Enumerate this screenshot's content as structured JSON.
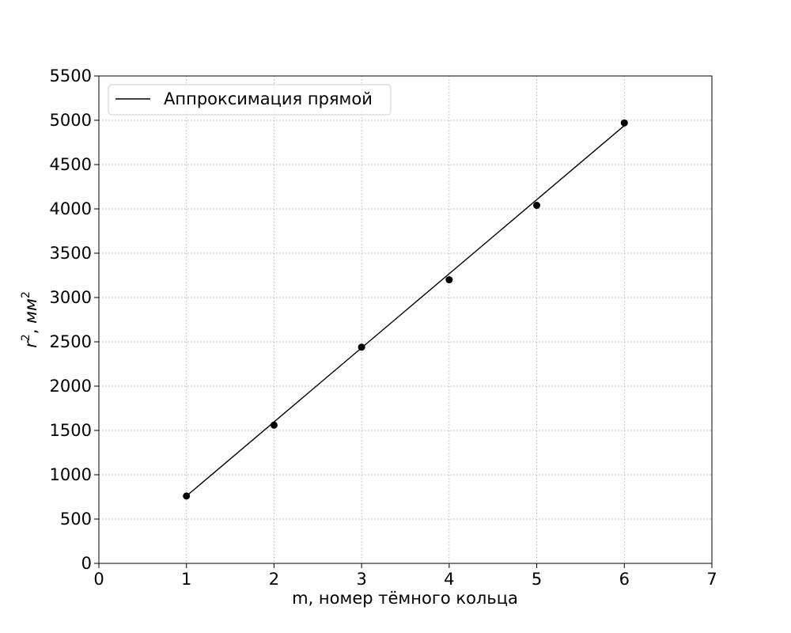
{
  "chart_data": {
    "type": "scatter",
    "title": "",
    "xlabel": "m, номер тёмного кольца",
    "ylabel": {
      "base1": "r",
      "sup1": "2",
      "sep": ", ",
      "base2": "мм",
      "sup2": "2"
    },
    "xlim": [
      0,
      7
    ],
    "ylim": [
      0,
      5500
    ],
    "x_ticks": [
      0,
      1,
      2,
      3,
      4,
      5,
      6,
      7
    ],
    "y_ticks": [
      0,
      500,
      1000,
      1500,
      2000,
      2500,
      3000,
      3500,
      4000,
      4500,
      5000,
      5500
    ],
    "grid": true,
    "legend_position": "top-left",
    "points": {
      "x": [
        1,
        2,
        3,
        4,
        5,
        6
      ],
      "y": [
        760,
        1560,
        2440,
        3200,
        4040,
        4970
      ]
    },
    "fit_line": {
      "name": "Аппроксимация прямой",
      "x": [
        1,
        6
      ],
      "y": [
        760,
        4940
      ]
    },
    "colors": {
      "points": "#000000",
      "line": "#000000",
      "grid": "#b0b0b0"
    }
  }
}
